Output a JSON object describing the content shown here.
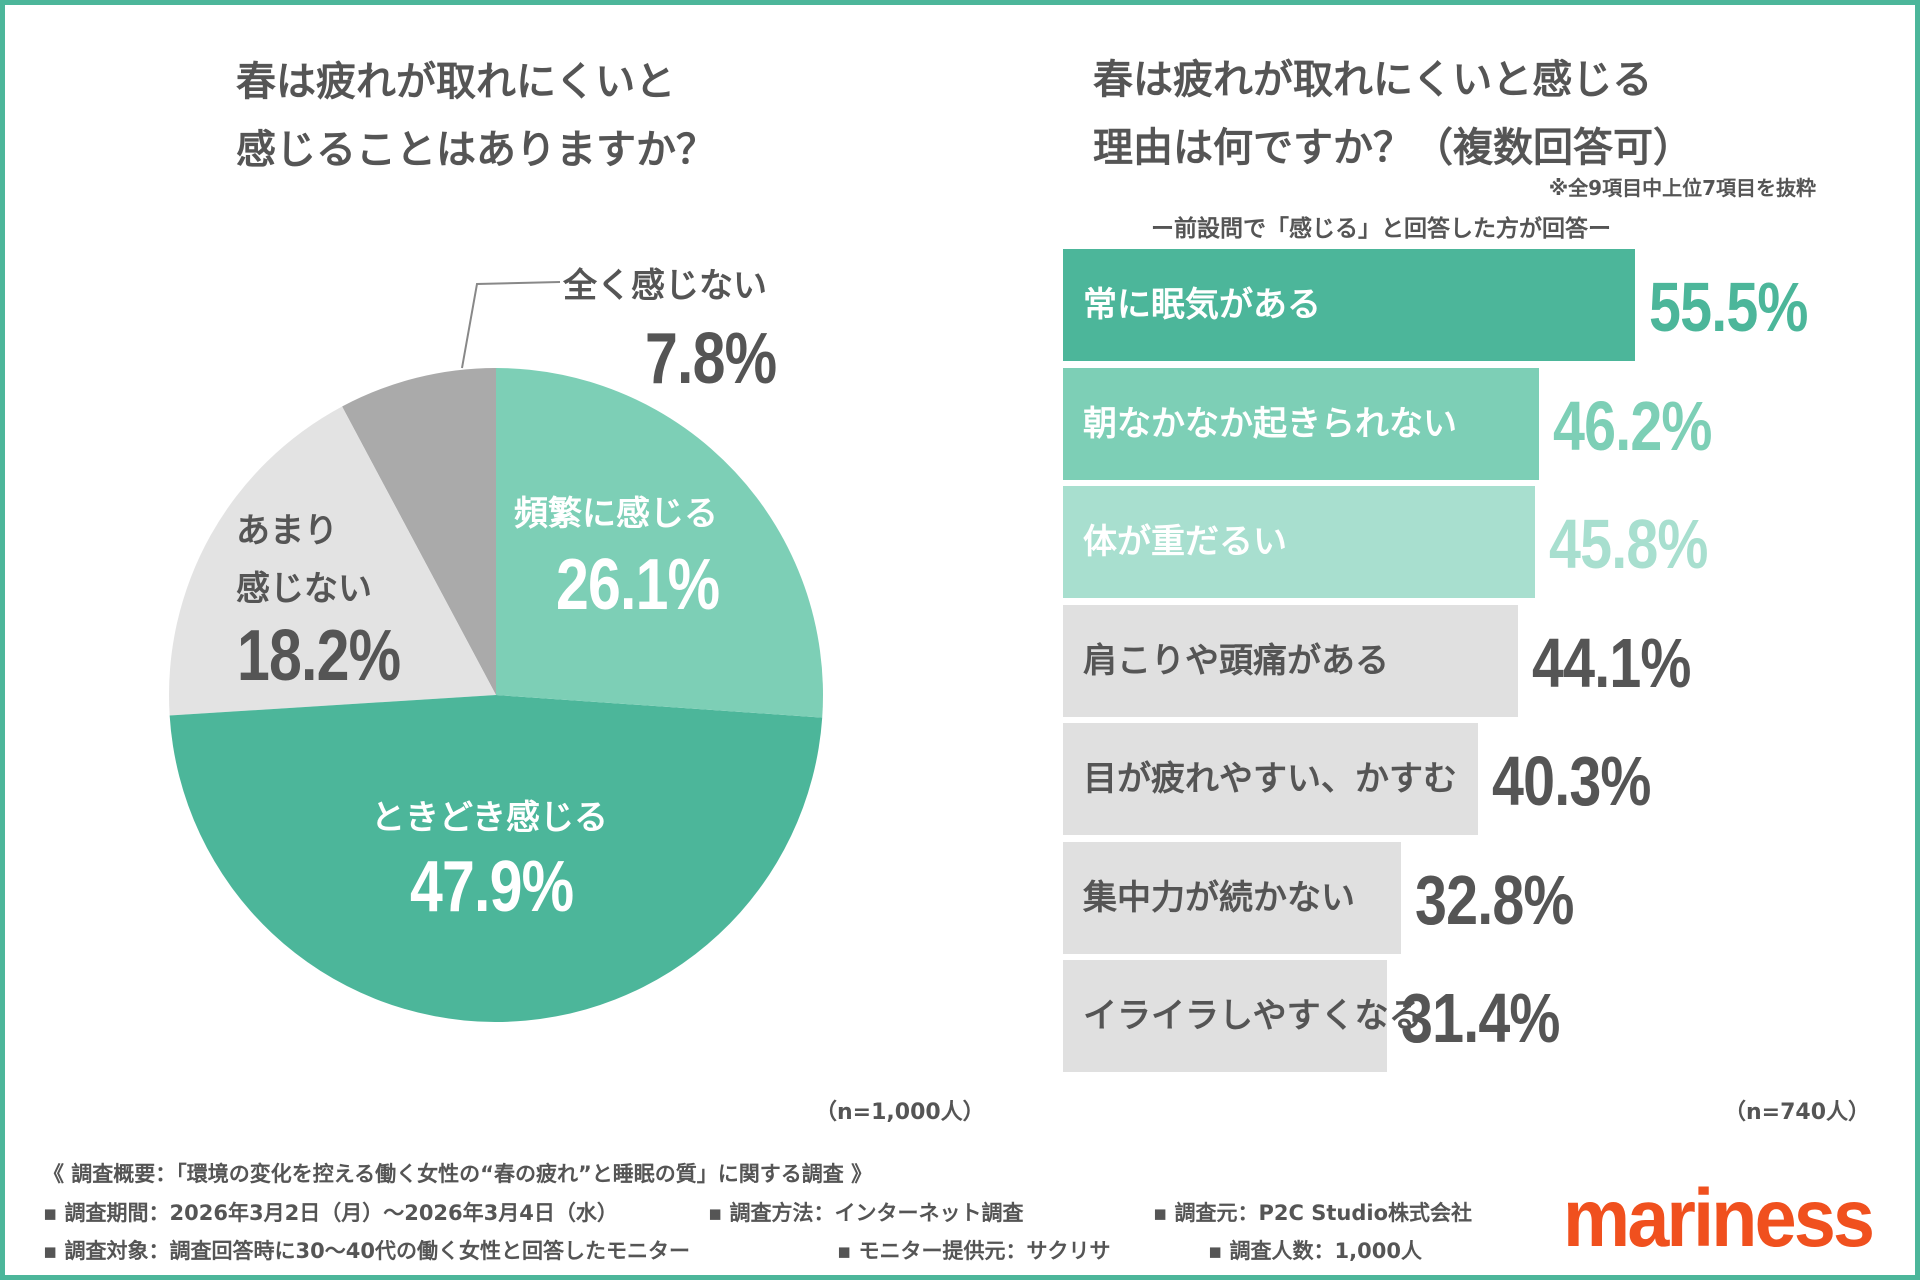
{
  "chart_data": [
    {
      "type": "pie",
      "title": "春は疲れが取れにくいと感じることはありますか？",
      "title_lines": [
        "春は疲れが取れにくいと",
        "感じることはありますか？"
      ],
      "slices": [
        {
          "label": "頻繁に感じる",
          "value": 26.1,
          "display": "26.1%",
          "color": "#7dcfb6"
        },
        {
          "label": "ときどき感じる",
          "value": 47.9,
          "display": "47.9%",
          "color": "#4cb69a"
        },
        {
          "label": "あまり感じない",
          "label_lines": [
            "あまり",
            "感じない"
          ],
          "value": 18.2,
          "display": "18.2%",
          "color": "#e3e3e3"
        },
        {
          "label": "全く感じない",
          "value": 7.8,
          "display": "7.8%",
          "color": "#aaaaaa"
        }
      ],
      "start": "12 o'clock, clockwise",
      "sample": "（n=1,000人）"
    },
    {
      "type": "bar",
      "orientation": "horizontal",
      "title": "春は疲れが取れにくいと感じる理由は何ですか？（複数回答可）",
      "title_lines": [
        "春は疲れが取れにくいと感じる",
        "理由は何ですか？（複数回答可）"
      ],
      "note": "※全9項目中上位7項目を抜粋",
      "subtitle": "ー前設問で「感じる」と回答した方が回答ー",
      "categories": [
        "常に眠気がある",
        "朝なかなか起きられない",
        "体が重だるい",
        "肩こりや頭痛がある",
        "目が疲れやすい、かすむ",
        "集中力が続かない",
        "イライラしやすくなる"
      ],
      "values": [
        55.5,
        46.2,
        45.8,
        44.1,
        40.3,
        32.8,
        31.4
      ],
      "display": [
        "55.5%",
        "46.2%",
        "45.8%",
        "44.1%",
        "40.3%",
        "32.8%",
        "31.4%"
      ],
      "bar_colors": [
        "#4cb69a",
        "#7dcfb6",
        "#a8dfcf",
        "#e0e0e0",
        "#e0e0e0",
        "#e0e0e0",
        "#e0e0e0"
      ],
      "label_colors": [
        "#ffffff",
        "#ffffff",
        "#ffffff",
        "#555555",
        "#555555",
        "#555555",
        "#555555"
      ],
      "value_colors": [
        "#4cb69a",
        "#7dcfb6",
        "#a8dfcf",
        "#555555",
        "#555555",
        "#555555",
        "#555555"
      ],
      "sample": "（n=740人）"
    }
  ],
  "footer": {
    "overview": "《 調査概要：「環境の変化を控える働く女性の“春の疲れ”と睡眠の質」に関する調査 》",
    "period": "▪ 調査期間：2026年3月2日（月）～2026年3月4日（水）",
    "method": "▪ 調査方法：インターネット調査",
    "source": "▪ 調査元：P2C Studio株式会社",
    "target": "▪ 調査対象：調査回答時に30～40代の働く女性と回答したモニター",
    "provider": "▪ モニター提供元：サクリサ",
    "count": "▪ 調査人数：1,000人"
  },
  "logo": "mariness",
  "colors": {
    "frame": "#4cb69a",
    "logo": "#f0501e"
  }
}
